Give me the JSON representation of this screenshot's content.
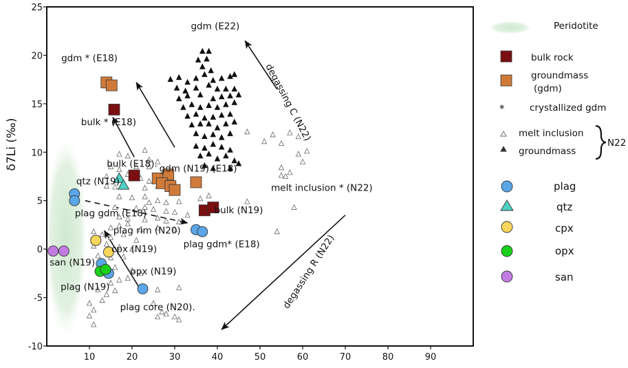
{
  "chart_data": {
    "type": "scatter",
    "title": "",
    "xlabel": "",
    "ylabel": "δ7Li (‰)",
    "xlim": [
      0,
      100
    ],
    "ylim": [
      -10,
      25
    ],
    "x_ticks": [
      10,
      20,
      30,
      40,
      50,
      60,
      70,
      80,
      90
    ],
    "y_ticks": [
      25,
      20,
      15,
      10,
      5,
      0,
      -5,
      -10
    ],
    "series": [
      {
        "name": "bulk rock",
        "marker": "square",
        "color": "#7a0f12",
        "points": [
          [
            15.8,
            14.4
          ],
          [
            20.5,
            7.6
          ],
          [
            37,
            4.0
          ],
          [
            39,
            4.3
          ]
        ]
      },
      {
        "name": "groundmass (gdm)",
        "marker": "square",
        "color": "#d07a3a",
        "points": [
          [
            14,
            17.2
          ],
          [
            15.2,
            16.9
          ],
          [
            26,
            7.3
          ],
          [
            28.5,
            7.7
          ],
          [
            27,
            6.8
          ],
          [
            29,
            6.5
          ],
          [
            30,
            6.1
          ],
          [
            35,
            6.9
          ]
        ]
      },
      {
        "name": "plag",
        "marker": "circle",
        "color": "#5aa6e6",
        "points": [
          [
            6.5,
            5.7
          ],
          [
            6.5,
            5.0
          ],
          [
            35,
            2.0
          ],
          [
            36.5,
            1.8
          ],
          [
            11.5,
            0.9
          ],
          [
            12.8,
            -1.5
          ],
          [
            13.8,
            -2.2
          ],
          [
            14.5,
            -2.5
          ],
          [
            22.5,
            -4.1
          ]
        ]
      },
      {
        "name": "qtz",
        "marker": "triangle",
        "color": "#4fd1c5",
        "points": [
          [
            17,
            7.3
          ],
          [
            18,
            6.6
          ]
        ]
      },
      {
        "name": "cpx",
        "marker": "circle",
        "color": "#f7d65c",
        "points": [
          [
            11.5,
            0.9
          ],
          [
            14.5,
            -0.3
          ]
        ]
      },
      {
        "name": "opx",
        "marker": "circle",
        "color": "#19d11a",
        "points": [
          [
            12.5,
            -2.3
          ],
          [
            13.8,
            -2.1
          ]
        ]
      },
      {
        "name": "san",
        "marker": "circle",
        "color": "#c17be3",
        "points": [
          [
            1.5,
            -0.2
          ],
          [
            4,
            -0.2
          ]
        ]
      },
      {
        "name": "melt inclusion (N22)",
        "marker": "small-triangle-open",
        "color": "#ffffff",
        "points": [
          [
            17,
            9.8
          ],
          [
            19,
            9.6
          ],
          [
            23,
            10.2
          ],
          [
            15,
            8.5
          ],
          [
            17,
            8.2
          ],
          [
            21,
            8.5
          ],
          [
            24,
            9.2
          ],
          [
            24,
            8.5
          ],
          [
            26,
            9.0
          ],
          [
            14,
            7.5
          ],
          [
            19,
            7.7
          ],
          [
            22,
            7.3
          ],
          [
            24,
            7.0
          ],
          [
            14,
            6.5
          ],
          [
            16,
            6.4
          ],
          [
            23,
            6.3
          ],
          [
            26,
            6.5
          ],
          [
            30,
            6.0
          ],
          [
            17,
            5.4
          ],
          [
            20,
            5.3
          ],
          [
            23,
            5.4
          ],
          [
            24,
            4.8
          ],
          [
            26,
            5.0
          ],
          [
            28,
            4.8
          ],
          [
            31,
            4.9
          ],
          [
            36,
            5.2
          ],
          [
            38,
            5.5
          ],
          [
            47,
            4.9
          ],
          [
            16,
            4.3
          ],
          [
            21,
            4.2
          ],
          [
            23,
            4.3
          ],
          [
            25,
            4.1
          ],
          [
            28,
            3.9
          ],
          [
            30,
            3.8
          ],
          [
            33,
            3.5
          ],
          [
            17,
            3.3
          ],
          [
            19,
            3.1
          ],
          [
            23,
            3.0
          ],
          [
            26,
            3.2
          ],
          [
            28,
            2.9
          ],
          [
            31,
            2.8
          ],
          [
            15,
            2.2
          ],
          [
            17,
            2.4
          ],
          [
            19,
            2.6
          ],
          [
            22,
            2.0
          ],
          [
            26,
            2.2
          ],
          [
            30,
            2.0
          ],
          [
            11,
            1.8
          ],
          [
            13,
            1.5
          ],
          [
            15,
            1.2
          ],
          [
            18,
            1.5
          ],
          [
            21,
            0.9
          ],
          [
            11,
            0.3
          ],
          [
            14,
            0.5
          ],
          [
            17,
            0.2
          ],
          [
            20,
            0.0
          ],
          [
            12,
            -0.7
          ],
          [
            15,
            -0.9
          ],
          [
            18,
            -0.8
          ],
          [
            13,
            -1.7
          ],
          [
            16,
            -1.9
          ],
          [
            20,
            -2.2
          ],
          [
            17,
            -3.2
          ],
          [
            19,
            -3.0
          ],
          [
            22,
            -2.5
          ],
          [
            15,
            -3.5
          ],
          [
            12,
            -4.2
          ],
          [
            14,
            -4.7
          ],
          [
            16,
            -4.3
          ],
          [
            10,
            -5.6
          ],
          [
            13,
            -5.3
          ],
          [
            11,
            -6.3
          ],
          [
            10,
            -6.9
          ],
          [
            11,
            -7.8
          ],
          [
            26,
            -4.2
          ],
          [
            31,
            -4.0
          ],
          [
            25,
            -5.6
          ],
          [
            27,
            -6.5
          ],
          [
            28,
            -6.7
          ],
          [
            30,
            -7.0
          ],
          [
            31,
            -7.3
          ],
          [
            26,
            -7.0
          ],
          [
            47,
            12.1
          ],
          [
            51,
            11.1
          ],
          [
            53,
            11.8
          ],
          [
            55,
            10.9
          ],
          [
            57,
            12.0
          ],
          [
            59,
            11.6
          ],
          [
            61,
            10.1
          ],
          [
            59,
            9.8
          ],
          [
            60,
            9.0
          ],
          [
            55,
            8.4
          ],
          [
            57,
            7.9
          ],
          [
            55,
            7.6
          ],
          [
            56,
            7.5
          ],
          [
            58,
            4.3
          ],
          [
            54,
            1.8
          ]
        ]
      },
      {
        "name": "groundmass (N22)",
        "marker": "small-triangle-filled",
        "color": "#111111",
        "points": [
          [
            36.5,
            20.4
          ],
          [
            38,
            20.4
          ],
          [
            35.5,
            19.5
          ],
          [
            37.5,
            19.6
          ],
          [
            36.5,
            18.8
          ],
          [
            38.5,
            18.4
          ],
          [
            29,
            17.5
          ],
          [
            31,
            17.7
          ],
          [
            33,
            17.2
          ],
          [
            35,
            17.6
          ],
          [
            37,
            18.0
          ],
          [
            39,
            17.4
          ],
          [
            41,
            17.6
          ],
          [
            43,
            17.8
          ],
          [
            44,
            18.0
          ],
          [
            30.5,
            16.6
          ],
          [
            32.5,
            16.3
          ],
          [
            35,
            16.6
          ],
          [
            38,
            16.9
          ],
          [
            40,
            16.5
          ],
          [
            42,
            16.5
          ],
          [
            44,
            16.5
          ],
          [
            31,
            15.5
          ],
          [
            33,
            15.8
          ],
          [
            36,
            15.9
          ],
          [
            39,
            15.5
          ],
          [
            41,
            15.7
          ],
          [
            43,
            15.8
          ],
          [
            45,
            15.9
          ],
          [
            32,
            14.6
          ],
          [
            34,
            14.9
          ],
          [
            36,
            14.6
          ],
          [
            38,
            14.8
          ],
          [
            40,
            14.6
          ],
          [
            42,
            14.9
          ],
          [
            44,
            15.1
          ],
          [
            33,
            13.7
          ],
          [
            35,
            13.9
          ],
          [
            37,
            13.5
          ],
          [
            39,
            13.6
          ],
          [
            41,
            13.8
          ],
          [
            43,
            13.9
          ],
          [
            34,
            12.8
          ],
          [
            36,
            12.9
          ],
          [
            38,
            12.9
          ],
          [
            40,
            12.5
          ],
          [
            42,
            12.9
          ],
          [
            44,
            13.1
          ],
          [
            35,
            11.9
          ],
          [
            37,
            11.6
          ],
          [
            39,
            11.8
          ],
          [
            41,
            11.5
          ],
          [
            43,
            11.9
          ],
          [
            35,
            10.6
          ],
          [
            37,
            10.4
          ],
          [
            39,
            10.8
          ],
          [
            41,
            10.5
          ],
          [
            43,
            10.2
          ],
          [
            36,
            9.6
          ],
          [
            38,
            9.8
          ],
          [
            40,
            9.3
          ],
          [
            42,
            9.6
          ],
          [
            44,
            9.1
          ],
          [
            45,
            8.8
          ],
          [
            37,
            8.6
          ],
          [
            39,
            8.3
          ],
          [
            43,
            8.3
          ]
        ]
      }
    ],
    "peridotite_region": {
      "x": [
        0,
        9
      ],
      "y": [
        -9.5,
        12
      ]
    },
    "arrows": [
      {
        "from": [
          20.5,
          9.5
        ],
        "to": [
          15.5,
          13.6
        ],
        "style": "solid"
      },
      {
        "from": [
          30,
          10.5
        ],
        "to": [
          21,
          17.2
        ],
        "style": "solid"
      },
      {
        "from": [
          54,
          16.5
        ],
        "to": [
          46.5,
          21.5
        ],
        "style": "solid"
      },
      {
        "from": [
          70,
          3.5
        ],
        "to": [
          41,
          -8.3
        ],
        "style": "solid"
      },
      {
        "from": [
          22,
          -4.2
        ],
        "to": [
          13.5,
          1.9
        ],
        "style": "solid"
      },
      {
        "from": [
          9,
          5.0
        ],
        "to": [
          33,
          2.7
        ],
        "style": "dashed"
      }
    ],
    "annotations": [
      {
        "text": "gdm  (E22)",
        "at": [
          39.5,
          22.7
        ]
      },
      {
        "text": "gdm * (E18)",
        "at": [
          10,
          19.4
        ]
      },
      {
        "text": "bulk * (E18)",
        "at": [
          14.5,
          12.8
        ]
      },
      {
        "text": "bulk (E18).",
        "at": [
          20,
          8.5
        ]
      },
      {
        "text": "qtz (N19)",
        "at": [
          12,
          6.7
        ]
      },
      {
        "text": "gdm (N19) (E18)",
        "at": [
          35.5,
          8.0
        ]
      },
      {
        "text": "melt inclusion * (N22)",
        "at": [
          64.5,
          6.0
        ]
      },
      {
        "text": "bulk (N19)",
        "at": [
          45,
          3.7
        ]
      },
      {
        "text": "plag gdm (E18)",
        "at": [
          15,
          3.4
        ]
      },
      {
        "text": "plag rim (N20)",
        "at": [
          23.5,
          1.6
        ]
      },
      {
        "text": "plag gdm* (E18)",
        "at": [
          41,
          0.2
        ]
      },
      {
        "text": "cpx (N19)",
        "at": [
          20.5,
          -0.3
        ]
      },
      {
        "text": "san (N19)",
        "at": [
          6,
          -1.7
        ]
      },
      {
        "text": "opx (N19)",
        "at": [
          25,
          -2.6
        ]
      },
      {
        "text": "plag (N19)",
        "at": [
          9,
          -4.2
        ]
      },
      {
        "text": "plag core (N20).",
        "at": [
          26,
          -6.3
        ]
      }
    ],
    "rotated_annotations": [
      {
        "text": "degassing C (N22)",
        "at": [
          56,
          15
        ],
        "angle": 62
      },
      {
        "text": "degassing R (N22)",
        "at": [
          62,
          -2.5
        ],
        "angle": -57
      }
    ]
  },
  "legend": {
    "peridotite": "Peridotite",
    "bulk_rock": "bulk rock",
    "groundmass_line1": "groundmass",
    "groundmass_line2": "(gdm)",
    "crystallized_symbol": "*",
    "crystallized": "crystallized gdm",
    "melt_inclusion": "melt inclusion",
    "groundmass_n22": "groundmass",
    "n22": "N22",
    "plag": "plag",
    "qtz": "qtz",
    "cpx": "cpx",
    "opx": "opx",
    "san": "san"
  }
}
